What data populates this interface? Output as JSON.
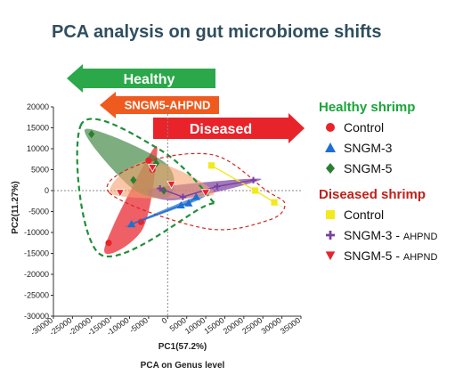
{
  "chart_data": {
    "type": "scatter",
    "title": "PCA analysis on gut microbiome shifts",
    "xlabel": "PC1(57.2%)",
    "ylabel": "PC2(11.27%)",
    "subtitle": "PCA on Genus level",
    "xlim": [
      -30000,
      35000
    ],
    "ylim": [
      -30000,
      20000
    ],
    "xticks": [
      -30000,
      -25000,
      -20000,
      -15000,
      -10000,
      -5000,
      0,
      5000,
      10000,
      15000,
      20000,
      25000,
      30000,
      35000
    ],
    "yticks": [
      20000,
      15000,
      10000,
      5000,
      0,
      -5000,
      -10000,
      -15000,
      -20000,
      -25000,
      -30000
    ],
    "arrows": [
      {
        "label": "Healthy",
        "direction": "left",
        "color": "#2aa84a"
      },
      {
        "label": "SNGM5-AHPND",
        "direction": "left",
        "color": "#ef5a1f"
      },
      {
        "label": "Diseased",
        "direction": "right",
        "color": "#e8232a"
      }
    ],
    "legend_groups": [
      {
        "heading": "Healthy shrimp",
        "color": "#1aa53a",
        "entries": [
          {
            "label": "Control",
            "suffix": "",
            "marker": "circle",
            "color": "#e8232a"
          },
          {
            "label": "SNGM-3",
            "suffix": "",
            "marker": "triangle-up",
            "color": "#1f6fd1"
          },
          {
            "label": "SNGM-5",
            "suffix": "",
            "marker": "diamond",
            "color": "#2e7d32"
          }
        ]
      },
      {
        "heading": "Diseased shrimp",
        "color": "#c0201a",
        "entries": [
          {
            "label": "Control",
            "suffix": "",
            "marker": "square",
            "color": "#f2ea1c"
          },
          {
            "label": "SNGM-3 - ",
            "suffix": "AHPND",
            "marker": "plus",
            "color": "#7b3fa0"
          },
          {
            "label": "SNGM-5 - ",
            "suffix": "AHPND",
            "marker": "triangle-down",
            "color": "#e8232a"
          }
        ]
      }
    ],
    "series": [
      {
        "name": "Healthy Control",
        "marker": "circle",
        "color": "#e8232a",
        "fill": "rgba(232,35,42,0.72)",
        "points": [
          [
            -15500,
            -12500
          ],
          [
            -7000,
            -7500
          ],
          [
            -5000,
            7200
          ],
          [
            -4000,
            5000
          ]
        ]
      },
      {
        "name": "Healthy SNGM-3",
        "marker": "triangle-up",
        "color": "#1f6fd1",
        "fill": "rgba(31,111,209,0.7)",
        "points": [
          [
            -9500,
            -8000
          ],
          [
            3500,
            -3500
          ],
          [
            5500,
            -3000
          ],
          [
            7500,
            -1500
          ]
        ]
      },
      {
        "name": "Healthy SNGM-5",
        "marker": "diamond",
        "color": "#2e7d32",
        "fill": "rgba(46,125,50,0.62)",
        "points": [
          [
            -20000,
            13500
          ],
          [
            -9000,
            2500
          ],
          [
            -1000,
            0
          ],
          [
            -3000,
            6500
          ]
        ]
      },
      {
        "name": "Diseased Control",
        "marker": "square",
        "color": "#f2ea1c",
        "fill": "rgba(242,234,28,0.7)",
        "points": [
          [
            11500,
            6000
          ],
          [
            23000,
            0
          ],
          [
            28000,
            -2800
          ]
        ]
      },
      {
        "name": "Diseased SNGM-3 - AHPND",
        "marker": "plus",
        "color": "#7b3fa0",
        "fill": "rgba(123,63,160,0.7)",
        "points": [
          [
            -2000,
            500
          ],
          [
            4000,
            -1500
          ],
          [
            13000,
            1000
          ],
          [
            22500,
            2500
          ]
        ]
      },
      {
        "name": "Diseased SNGM-5 - AHPND",
        "marker": "triangle-down",
        "color": "#e8232a",
        "fill": "rgba(245,160,110,0.6)",
        "points": [
          [
            -12500,
            -500
          ],
          [
            -4000,
            5500
          ],
          [
            1000,
            1500
          ],
          [
            10000,
            -500
          ]
        ]
      }
    ]
  }
}
